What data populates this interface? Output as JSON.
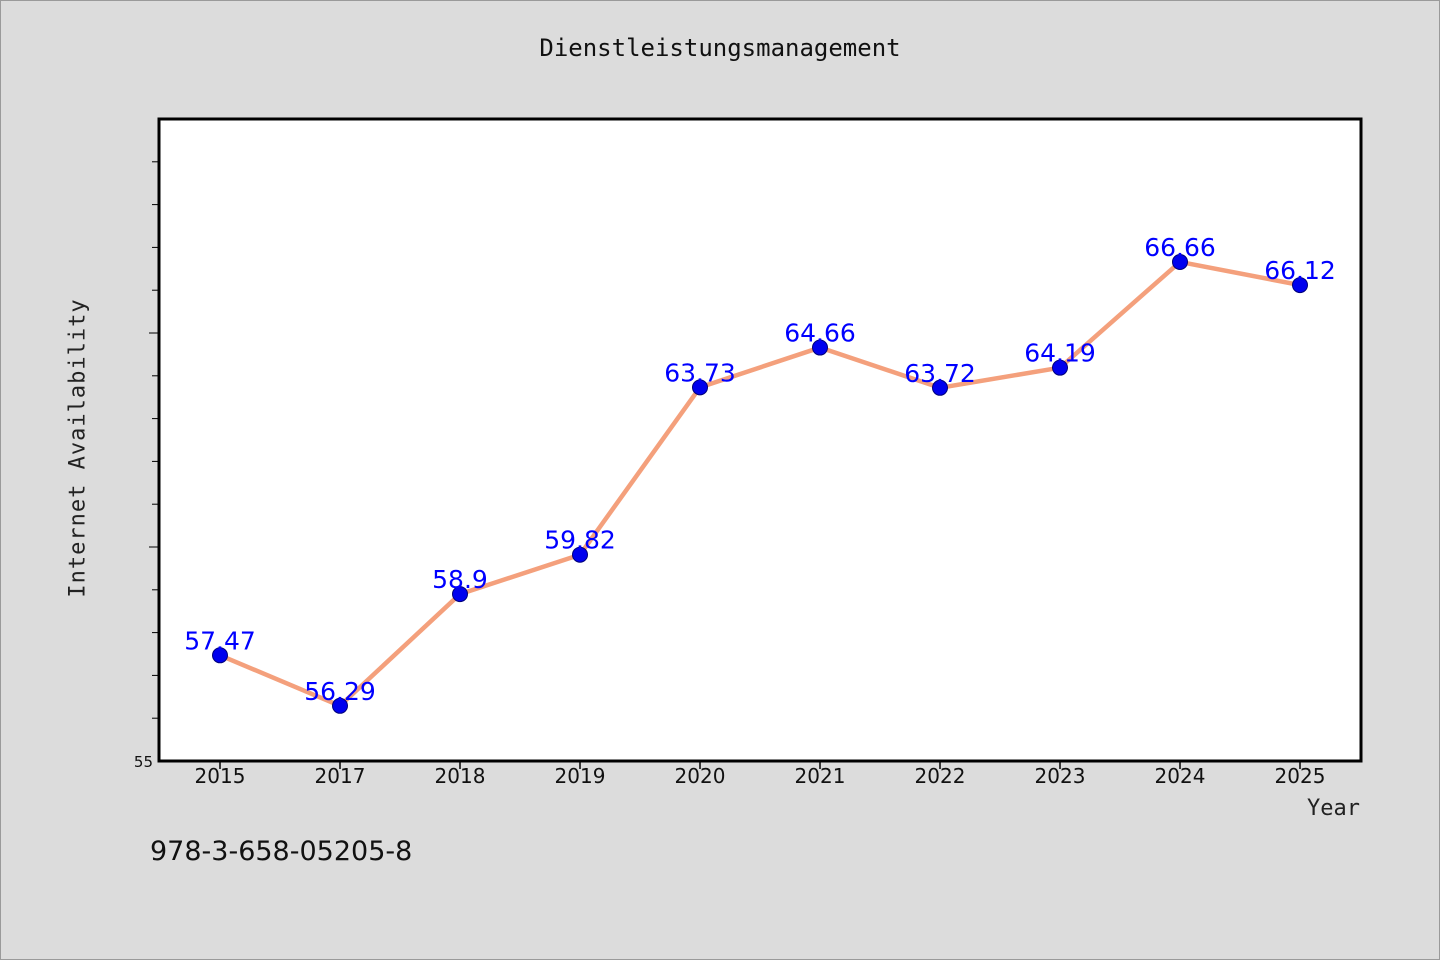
{
  "chart_data": {
    "type": "line",
    "title": "Dienstleistungsmanagement",
    "xlabel": "Year",
    "ylabel": "Internet Availability",
    "categories": [
      "2015",
      "2017",
      "2018",
      "2019",
      "2020",
      "2021",
      "2022",
      "2023",
      "2024",
      "2025"
    ],
    "series": [
      {
        "values": [
          57.47,
          56.29,
          58.9,
          59.82,
          63.73,
          64.66,
          63.72,
          64.19,
          66.66,
          66.12
        ],
        "line_color": "#f4a07c",
        "marker_color": "#0000ee"
      }
    ],
    "data_labels": [
      "57.47",
      "56.29",
      "58.9",
      "59.82",
      "63.73",
      "64.66",
      "63.72",
      "64.19",
      "66.66",
      "66.12"
    ],
    "ylim": [
      55,
      70
    ],
    "y_ticks_labeled": [
      "55"
    ],
    "y_minor_tick_step": 1,
    "grid": false,
    "legend": "none",
    "plot_background": "#ffffff",
    "data_label_color": "#0000ff"
  },
  "footnote": "978-3-658-05205-8"
}
